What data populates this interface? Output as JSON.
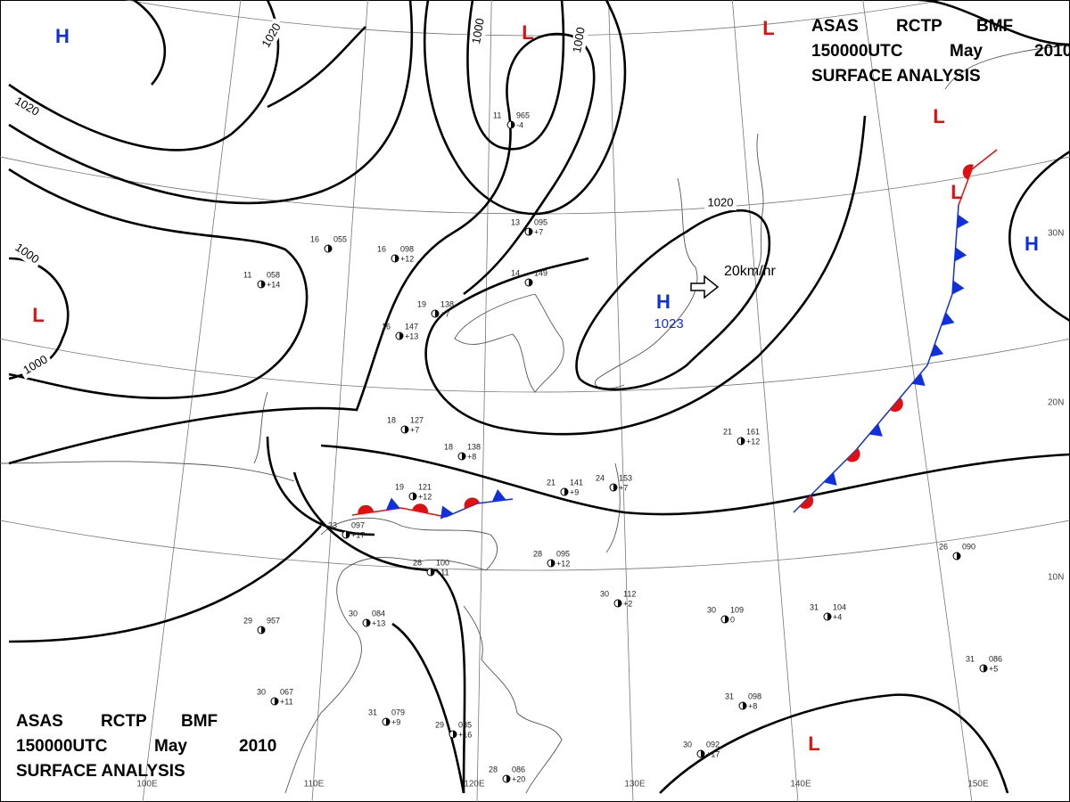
{
  "header": {
    "line1": [
      "ASAS",
      "RCTP",
      "BMF"
    ],
    "line2": [
      "150000UTC",
      "May",
      "2010"
    ],
    "line3": "SURFACE ANALYSIS"
  },
  "pressure_centers": [
    {
      "label": "H"
    },
    {
      "label": "L"
    },
    {
      "label": "L"
    },
    {
      "label": "L"
    },
    {
      "label": "L"
    },
    {
      "label": "H"
    },
    {
      "label": "H",
      "pressure": "1023"
    },
    {
      "label": "L"
    },
    {
      "label": "L"
    }
  ],
  "isobar_labels": [
    "1020",
    "1000",
    "1000",
    "1020",
    "1000",
    "1000",
    "1020"
  ],
  "latitude_labels": [
    "30N",
    "20N",
    "10N"
  ],
  "longitude_labels": [
    "100E",
    "110E",
    "120E",
    "130E",
    "140E",
    "150E"
  ],
  "motion": "20km/hr",
  "stations": [
    {
      "temp": "11",
      "pressure": "965",
      "tendency": "-4"
    },
    {
      "temp": "16",
      "pressure": "098",
      "tendency": "+12"
    },
    {
      "temp": "19",
      "pressure": "138",
      "tendency": "+7"
    },
    {
      "temp": "16",
      "pressure": "147",
      "tendency": "+13"
    },
    {
      "temp": "18",
      "pressure": "127",
      "tendency": "+7"
    },
    {
      "temp": "18",
      "pressure": "138",
      "tendency": "+8"
    },
    {
      "temp": "19",
      "pressure": "121",
      "tendency": "+12"
    },
    {
      "temp": "23",
      "pressure": "097",
      "tendency": "+17"
    },
    {
      "temp": "28",
      "pressure": "100",
      "tendency": "+11"
    },
    {
      "temp": "28",
      "pressure": "095",
      "tendency": "+12"
    },
    {
      "temp": "21",
      "pressure": "141",
      "tendency": "+9"
    },
    {
      "temp": "24",
      "pressure": "153",
      "tendency": "+7"
    },
    {
      "temp": "30",
      "pressure": "112",
      "tendency": "+2"
    },
    {
      "temp": "30",
      "pressure": "109",
      "tendency": "0"
    },
    {
      "temp": "31",
      "pressure": "104",
      "tendency": "+4"
    },
    {
      "temp": "26",
      "pressure": "090",
      "tendency": ""
    },
    {
      "temp": "29",
      "pressure": "957",
      "tendency": ""
    },
    {
      "temp": "30",
      "pressure": "084",
      "tendency": "+13"
    },
    {
      "temp": "30",
      "pressure": "067",
      "tendency": "+11"
    },
    {
      "temp": "31",
      "pressure": "079",
      "tendency": "+9"
    },
    {
      "temp": "29",
      "pressure": "085",
      "tendency": "+16"
    },
    {
      "temp": "28",
      "pressure": "086",
      "tendency": "+20"
    },
    {
      "temp": "31",
      "pressure": "098",
      "tendency": "+8"
    },
    {
      "temp": "30",
      "pressure": "092",
      "tendency": "+17"
    },
    {
      "temp": "31",
      "pressure": "086",
      "tendency": "+5"
    },
    {
      "temp": "21",
      "pressure": "161",
      "tendency": "+12"
    },
    {
      "temp": "14",
      "pressure": "149",
      "tendency": ""
    },
    {
      "temp": "11",
      "pressure": "058",
      "tendency": "+14"
    },
    {
      "temp": "16",
      "pressure": "055",
      "tendency": ""
    },
    {
      "temp": "13",
      "pressure": "095",
      "tendency": "+7"
    }
  ]
}
